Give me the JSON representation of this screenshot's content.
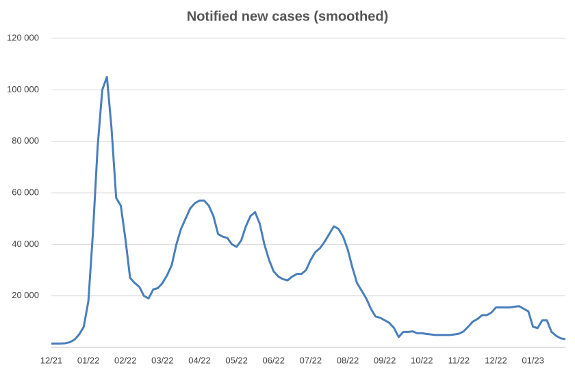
{
  "chart_data": {
    "type": "line",
    "title": "Notified new cases (smoothed)",
    "categories": [
      "12/21",
      null,
      null,
      null,
      null,
      null,
      null,
      null,
      "01/22",
      null,
      null,
      null,
      null,
      null,
      null,
      null,
      "02/22",
      null,
      null,
      null,
      null,
      null,
      null,
      null,
      "03/22",
      null,
      null,
      null,
      null,
      null,
      null,
      null,
      "04/22",
      null,
      null,
      null,
      null,
      null,
      null,
      null,
      "05/22",
      null,
      null,
      null,
      null,
      null,
      null,
      null,
      "06/22",
      null,
      null,
      null,
      null,
      null,
      null,
      null,
      "07/22",
      null,
      null,
      null,
      null,
      null,
      null,
      null,
      "08/22",
      null,
      null,
      null,
      null,
      null,
      null,
      null,
      "09/22",
      null,
      null,
      null,
      null,
      null,
      null,
      null,
      "10/22",
      null,
      null,
      null,
      null,
      null,
      null,
      null,
      "11/22",
      null,
      null,
      null,
      null,
      null,
      null,
      null,
      "12/22",
      null,
      null,
      null,
      null,
      null,
      null,
      null,
      "01/23",
      null,
      null,
      null,
      null,
      null,
      null,
      null
    ],
    "values": [
      1500,
      1500,
      1500,
      1600,
      2000,
      3000,
      5000,
      8000,
      18000,
      45000,
      78000,
      100000,
      105000,
      85000,
      58000,
      55000,
      42000,
      27000,
      25000,
      23500,
      20000,
      19000,
      22500,
      23000,
      25000,
      28000,
      32000,
      40000,
      46000,
      50000,
      54000,
      56000,
      57000,
      57000,
      55000,
      51000,
      44000,
      43000,
      42500,
      40000,
      39000,
      41500,
      47000,
      51000,
      52500,
      48000,
      40000,
      34000,
      29500,
      27500,
      26500,
      26000,
      27500,
      28500,
      28500,
      30000,
      34000,
      37000,
      38500,
      41000,
      44000,
      47000,
      46000,
      43000,
      38000,
      31000,
      25000,
      22000,
      19000,
      15000,
      12000,
      11500,
      10500,
      9500,
      7500,
      4000,
      6000,
      6000,
      6200,
      5500,
      5500,
      5200,
      5000,
      4800,
      4800,
      4800,
      4800,
      5000,
      5300,
      6200,
      8000,
      10000,
      11000,
      12500,
      12500,
      13500,
      15500,
      15500,
      15500,
      15500,
      15800,
      16000,
      15000,
      14000,
      8000,
      7500,
      10500,
      10500,
      6000,
      4500,
      3500,
      3200
    ],
    "color": "#4a7ebb",
    "ylim": [
      0,
      120000
    ],
    "yticks": [
      {
        "value": 20000,
        "label": "20 000"
      },
      {
        "value": 40000,
        "label": "40 000"
      },
      {
        "value": 60000,
        "label": "60 000"
      },
      {
        "value": 80000,
        "label": "80 000"
      },
      {
        "value": 100000,
        "label": "100 000"
      },
      {
        "value": 120000,
        "label": "120 000"
      }
    ],
    "grid": true
  }
}
